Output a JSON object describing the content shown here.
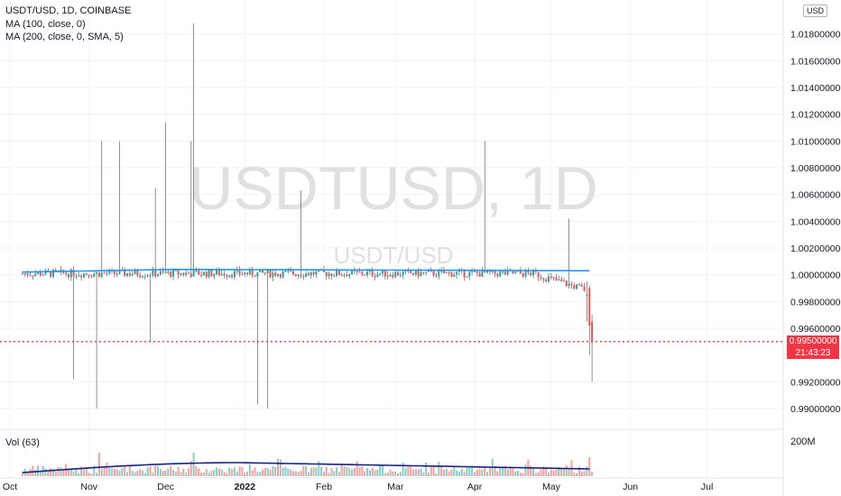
{
  "header": {
    "symbol_line": "USDT/USD, 1D, COINBASE",
    "indicator_ma100": "MA (100, close, 0)",
    "indicator_ma200": "MA (200, close, 0, SMA, 5)",
    "volume_label": "Vol (63)",
    "currency_badge": "USD"
  },
  "watermark": {
    "main": "USDTUSD, 1D",
    "sub": "USDT/USD"
  },
  "last_price": {
    "value": "0.99500000",
    "countdown": "21:43:23",
    "color": "#f23645"
  },
  "colors": {
    "up": "#26a69a",
    "down": "#ef5350",
    "ma100": "#2196f3",
    "vol_ma": "#1a237e",
    "price_line": "#f23645"
  },
  "chart_data": {
    "type": "candlestick",
    "symbol": "USDT/USD",
    "interval": "1D",
    "exchange": "COINBASE",
    "y_axis": {
      "ticks": [
        "1.01800000",
        "1.01600000",
        "1.01400000",
        "1.01200000",
        "1.01000000",
        "1.00800000",
        "1.00600000",
        "1.00400000",
        "1.00200000",
        "1.00000000",
        "0.99800000",
        "0.99600000",
        "0.99200000",
        "0.99000000"
      ],
      "range": [
        0.9883,
        1.0205
      ]
    },
    "x_axis": {
      "ticks": [
        "Oct",
        "Nov",
        "Dec",
        "2022",
        "Feb",
        "Mar",
        "Apr",
        "May",
        "Jun",
        "Jul"
      ],
      "tick_days": [
        0,
        31,
        61,
        92,
        123,
        151,
        182,
        212,
        243,
        273
      ],
      "range_days": [
        0,
        311
      ],
      "origin_label": "Oct"
    },
    "volume_axis": {
      "ticks": [
        "200M"
      ]
    },
    "candle_count": 224,
    "close_baseline": 1.0001,
    "high_spikes": [
      {
        "day": 31,
        "high": 1.01
      },
      {
        "day": 38,
        "high": 1.01
      },
      {
        "day": 52,
        "high": 1.0065
      },
      {
        "day": 56,
        "high": 1.0114
      },
      {
        "day": 66,
        "high": 1.01
      },
      {
        "day": 67,
        "high": 1.0188
      },
      {
        "day": 109,
        "high": 1.0063
      },
      {
        "day": 181,
        "high": 1.01
      },
      {
        "day": 214,
        "high": 1.0042
      }
    ],
    "low_spikes": [
      {
        "day": 20,
        "low": 0.9922
      },
      {
        "day": 29,
        "low": 0.99
      },
      {
        "day": 50,
        "low": 0.995
      },
      {
        "day": 92,
        "low": 0.9903
      },
      {
        "day": 96,
        "low": 0.99
      },
      {
        "day": 223,
        "low": 0.992
      }
    ],
    "last_candles": [
      {
        "day": 221,
        "open": 0.9985,
        "close": 0.9985,
        "high": 0.9995,
        "low": 0.9965
      },
      {
        "day": 222,
        "open": 0.999,
        "close": 0.9962,
        "high": 0.9992,
        "low": 0.994
      },
      {
        "day": 223,
        "open": 0.9965,
        "close": 0.995,
        "high": 0.997,
        "low": 0.992
      }
    ],
    "ma100": {
      "start_day": 0,
      "end_day": 222,
      "start": 1.0002,
      "peak_day": 60,
      "peak": 1.0004,
      "end": 1.0003
    },
    "volume_ma": {
      "start": 20,
      "peak_day": 85,
      "peak": 75,
      "end": 40,
      "unit": "M"
    }
  }
}
